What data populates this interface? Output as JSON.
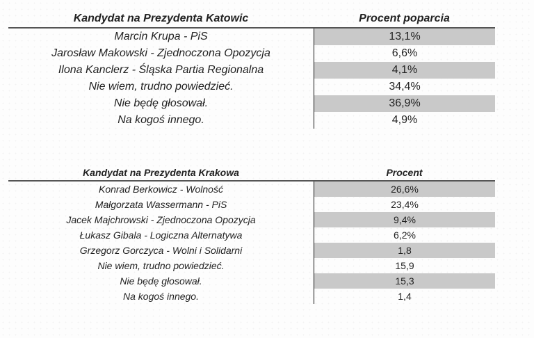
{
  "page": {
    "background": "#fdfdfd",
    "text_color": "#222222",
    "shade_color": "#c9c9c9",
    "header_rule_color": "#555555",
    "column_divider_color": "#111111"
  },
  "tables": [
    {
      "id": "katowice",
      "header": {
        "candidate": "Kandydat na Prezydenta Katowic",
        "percent": "Procent poparcia"
      },
      "rows": [
        {
          "label": "Marcin Krupa - PiS",
          "value": "13,1%",
          "shaded": true
        },
        {
          "label": "Jarosław Makowski - Zjednoczona Opozycja",
          "value": "6,6%",
          "shaded": false
        },
        {
          "label": "Ilona Kanclerz - Śląska Partia Regionalna",
          "value": "4,1%",
          "shaded": true
        },
        {
          "label": "Nie wiem, trudno powiedzieć.",
          "value": "34,4%",
          "shaded": false
        },
        {
          "label": "Nie będę głosował.",
          "value": "36,9%",
          "shaded": true
        },
        {
          "label": "Na kogoś innego.",
          "value": "4,9%",
          "shaded": false
        }
      ]
    },
    {
      "id": "krakow",
      "header": {
        "candidate": "Kandydat na Prezydenta Krakowa",
        "percent": "Procent"
      },
      "rows": [
        {
          "label": "Konrad Berkowicz - Wolność",
          "value": "26,6%",
          "shaded": true
        },
        {
          "label": "Małgorzata Wassermann - PiS",
          "value": "23,4%",
          "shaded": false
        },
        {
          "label": "Jacek Majchrowski - Zjednoczona Opozycja",
          "value": "9,4%",
          "shaded": true
        },
        {
          "label": "Łukasz Gibala - Logiczna Alternatywa",
          "value": "6,2%",
          "shaded": false
        },
        {
          "label": "Grzegorz Gorczyca - Wolni i Solidarni",
          "value": "1,8",
          "shaded": true
        },
        {
          "label": "Nie wiem, trudno powiedzieć.",
          "value": "15,9",
          "shaded": false
        },
        {
          "label": "Nie będę głosował.",
          "value": "15,3",
          "shaded": true
        },
        {
          "label": "Na kogoś innego.",
          "value": "1,4",
          "shaded": false
        }
      ]
    }
  ]
}
